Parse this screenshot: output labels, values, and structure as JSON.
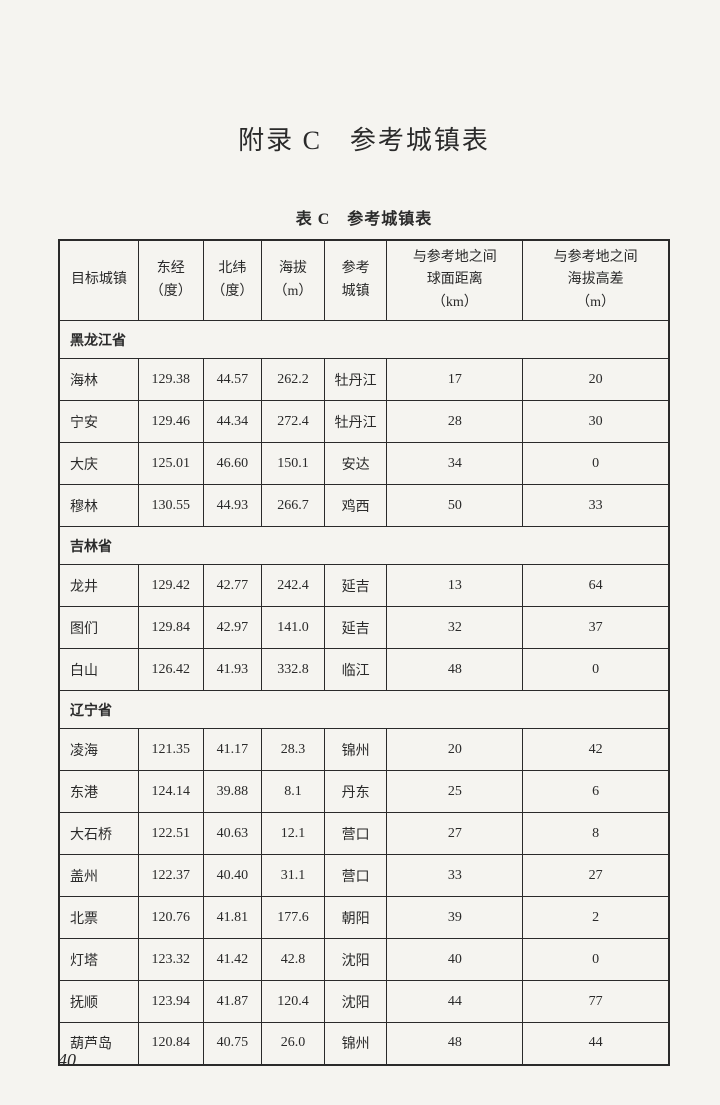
{
  "page_title": "附录 C　参考城镇表",
  "table_caption": "表 C　参考城镇表",
  "headers": {
    "target_city": "目标城镇",
    "longitude": "东经\n（度）",
    "latitude": "北纬\n（度）",
    "elevation": "海拔\n（m）",
    "ref_city": "参考\n城镇",
    "sphere_dist": "与参考地之间\n球面距离\n（km）",
    "elev_diff": "与参考地之间\n海拔高差\n（m）"
  },
  "sections": [
    {
      "name": "黑龙江省",
      "rows": [
        {
          "target": "海林",
          "lng": "129.38",
          "lat": "44.57",
          "elev": "262.2",
          "ref": "牡丹江",
          "dist": "17",
          "diff": "20"
        },
        {
          "target": "宁安",
          "lng": "129.46",
          "lat": "44.34",
          "elev": "272.4",
          "ref": "牡丹江",
          "dist": "28",
          "diff": "30"
        },
        {
          "target": "大庆",
          "lng": "125.01",
          "lat": "46.60",
          "elev": "150.1",
          "ref": "安达",
          "dist": "34",
          "diff": "0"
        },
        {
          "target": "穆林",
          "lng": "130.55",
          "lat": "44.93",
          "elev": "266.7",
          "ref": "鸡西",
          "dist": "50",
          "diff": "33"
        }
      ]
    },
    {
      "name": "吉林省",
      "rows": [
        {
          "target": "龙井",
          "lng": "129.42",
          "lat": "42.77",
          "elev": "242.4",
          "ref": "延吉",
          "dist": "13",
          "diff": "64"
        },
        {
          "target": "图们",
          "lng": "129.84",
          "lat": "42.97",
          "elev": "141.0",
          "ref": "延吉",
          "dist": "32",
          "diff": "37"
        },
        {
          "target": "白山",
          "lng": "126.42",
          "lat": "41.93",
          "elev": "332.8",
          "ref": "临江",
          "dist": "48",
          "diff": "0"
        }
      ]
    },
    {
      "name": "辽宁省",
      "rows": [
        {
          "target": "凌海",
          "lng": "121.35",
          "lat": "41.17",
          "elev": "28.3",
          "ref": "锦州",
          "dist": "20",
          "diff": "42"
        },
        {
          "target": "东港",
          "lng": "124.14",
          "lat": "39.88",
          "elev": "8.1",
          "ref": "丹东",
          "dist": "25",
          "diff": "6"
        },
        {
          "target": "大石桥",
          "lng": "122.51",
          "lat": "40.63",
          "elev": "12.1",
          "ref": "营口",
          "dist": "27",
          "diff": "8"
        },
        {
          "target": "盖州",
          "lng": "122.37",
          "lat": "40.40",
          "elev": "31.1",
          "ref": "营口",
          "dist": "33",
          "diff": "27"
        },
        {
          "target": "北票",
          "lng": "120.76",
          "lat": "41.81",
          "elev": "177.6",
          "ref": "朝阳",
          "dist": "39",
          "diff": "2"
        },
        {
          "target": "灯塔",
          "lng": "123.32",
          "lat": "41.42",
          "elev": "42.8",
          "ref": "沈阳",
          "dist": "40",
          "diff": "0"
        },
        {
          "target": "抚顺",
          "lng": "123.94",
          "lat": "41.87",
          "elev": "120.4",
          "ref": "沈阳",
          "dist": "44",
          "diff": "77"
        },
        {
          "target": "葫芦岛",
          "lng": "120.84",
          "lat": "40.75",
          "elev": "26.0",
          "ref": "锦州",
          "dist": "48",
          "diff": "44"
        }
      ]
    }
  ],
  "page_number": "40"
}
